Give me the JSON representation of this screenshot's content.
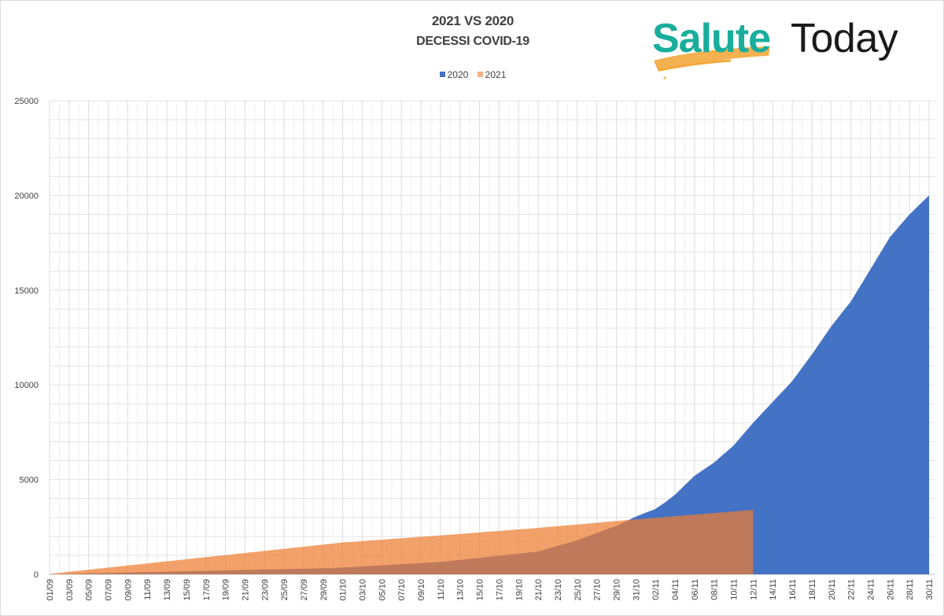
{
  "title": "2021 VS 2020",
  "subtitle": "DECESSI COVID-19",
  "logo": {
    "part1": "Salute",
    "part2": "Today"
  },
  "chart_data": {
    "type": "area",
    "title": "2021 VS 2020 DECESSI COVID-19",
    "xlabel": "",
    "ylabel": "",
    "ylim": [
      0,
      25000
    ],
    "y_ticks": [
      "0",
      "5000",
      "10000",
      "15000",
      "20000",
      "25000"
    ],
    "y_tick_values": [
      0,
      5000,
      10000,
      15000,
      20000,
      25000
    ],
    "x_count": 91,
    "x_tick_labels": [
      "01/09",
      "03/09",
      "05/09",
      "07/09",
      "09/09",
      "11/09",
      "13/09",
      "15/09",
      "17/09",
      "19/09",
      "21/09",
      "23/09",
      "25/09",
      "27/09",
      "29/09",
      "01/10",
      "03/10",
      "05/10",
      "07/10",
      "09/10",
      "11/10",
      "13/10",
      "15/10",
      "17/10",
      "19/10",
      "21/10",
      "23/10",
      "25/10",
      "27/10",
      "29/10",
      "31/10",
      "02/11",
      "04/11",
      "06/11",
      "08/11",
      "10/11",
      "12/11",
      "14/11",
      "16/11",
      "18/11",
      "20/11",
      "22/11",
      "24/11",
      "26/11",
      "28/11",
      "30/11"
    ],
    "grid": true,
    "legend_position": "top-center",
    "series": [
      {
        "name": "2020",
        "color": "#4472C4",
        "values": [
          0,
          11,
          23,
          34,
          46,
          57,
          68,
          80,
          91,
          103,
          114,
          125,
          137,
          148,
          160,
          171,
          182,
          194,
          205,
          217,
          228,
          239,
          251,
          262,
          274,
          285,
          296,
          308,
          319,
          330,
          359,
          388,
          417,
          446,
          475,
          504,
          533,
          562,
          591,
          620,
          650,
          705,
          760,
          815,
          870,
          925,
          980,
          1035,
          1090,
          1145,
          1200,
          1350,
          1500,
          1650,
          1800,
          1990,
          2180,
          2370,
          2550,
          2800,
          3050,
          3250,
          3450,
          3800,
          4200,
          4700,
          5200,
          5550,
          5900,
          6350,
          6800,
          7400,
          8000,
          8550,
          9100,
          9650,
          10200,
          10900,
          11600,
          12350,
          13100,
          13750,
          14400,
          15250,
          16100,
          16950,
          17800,
          18400,
          19000,
          19500,
          20000
        ]
      },
      {
        "name": "2021",
        "color": "#ED7D31",
        "values": [
          20,
          76,
          132,
          188,
          244,
          300,
          355,
          410,
          465,
          520,
          575,
          630,
          685,
          740,
          795,
          850,
          905,
          960,
          1015,
          1070,
          1125,
          1180,
          1235,
          1290,
          1345,
          1400,
          1456,
          1512,
          1568,
          1624,
          1680,
          1717,
          1754,
          1791,
          1828,
          1865,
          1902,
          1939,
          1976,
          2013,
          2050,
          2090,
          2130,
          2170,
          2210,
          2250,
          2290,
          2330,
          2370,
          2410,
          2450,
          2495,
          2540,
          2585,
          2630,
          2675,
          2720,
          2765,
          2810,
          2855,
          2900,
          2942,
          2983,
          3025,
          3067,
          3108,
          3150,
          3192,
          3233,
          3275,
          3317,
          3358,
          3400
        ]
      }
    ]
  }
}
